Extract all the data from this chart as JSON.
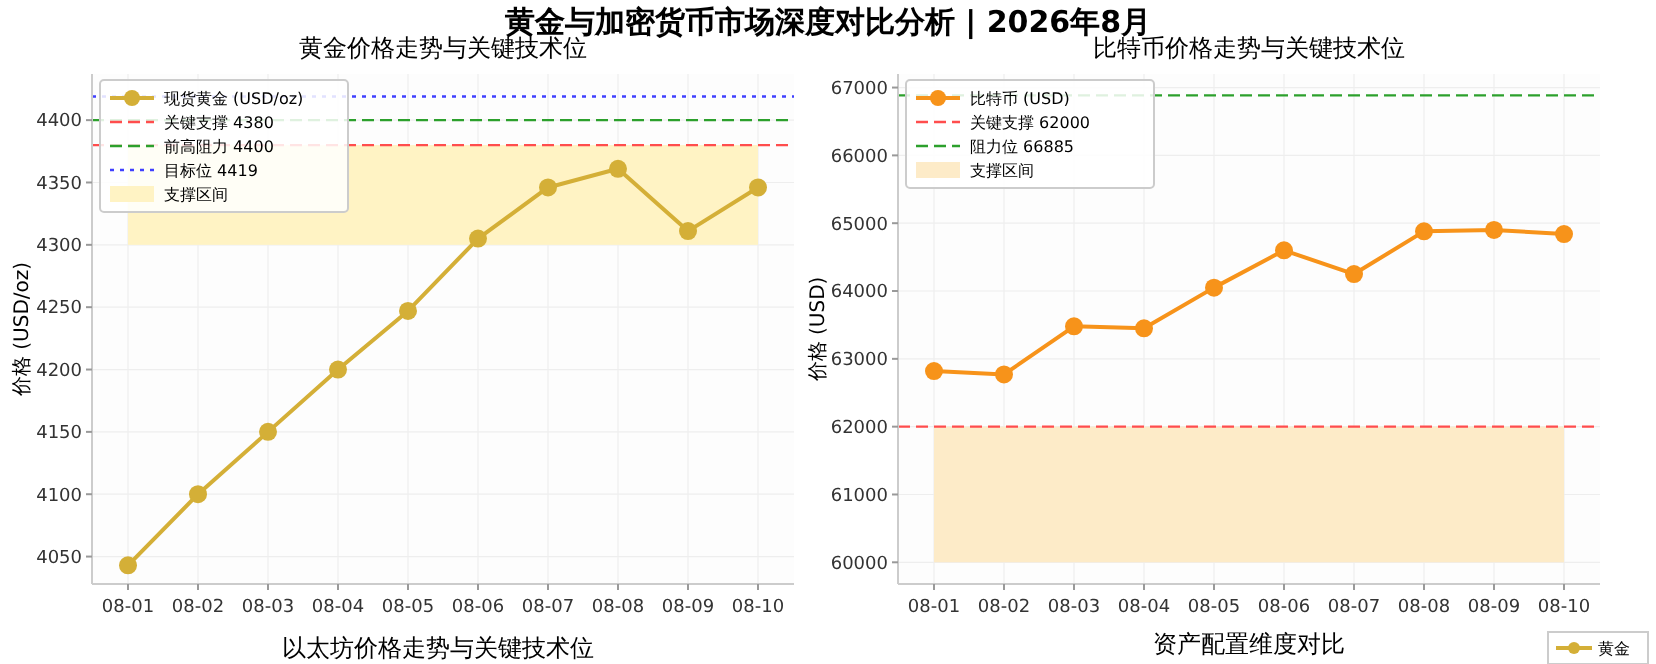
{
  "chart_data": [
    {
      "type": "line",
      "title": "黄金价格走势与关键技术位",
      "ylabel": "价格 (USD/oz)",
      "annotations": [
        "黄金与加密货币市场深度对比分析 | 2026年8月",
        "以太坊价格走势与关键技术位"
      ],
      "categories": [
        "08-01",
        "08-02",
        "08-03",
        "08-04",
        "08-05",
        "08-06",
        "08-07",
        "08-08",
        "08-09",
        "08-10"
      ],
      "series": [
        {
          "name": "现货黄金 (USD/oz)",
          "color": "#d4af37",
          "values": [
            4043,
            4100,
            4150,
            4200,
            4247,
            4305,
            4346,
            4361,
            4311,
            4346
          ]
        }
      ],
      "ref_lines": [
        {
          "axis": "y",
          "value": 4380,
          "label": "关键支撑 4380",
          "color": "#ff4d4d",
          "line_style": "dashed"
        },
        {
          "axis": "y",
          "value": 4400,
          "label": "前高阻力 4400",
          "color": "#2ca02c",
          "line_style": "dashed"
        },
        {
          "axis": "y",
          "value": 4419,
          "label": "目标位 4419",
          "color": "#4040ff",
          "line_style": "dotted"
        }
      ],
      "bands": [
        {
          "axis": "y",
          "from": 4300,
          "to": 4380,
          "label": "支撑区间",
          "color": "#fff3c4"
        }
      ],
      "ylim": [
        4028,
        4437
      ],
      "yticks": [
        4050,
        4100,
        4150,
        4200,
        4250,
        4300,
        4350,
        4400
      ],
      "grid": true,
      "legend": "top left",
      "marker": "circle",
      "line_style": "solid"
    },
    {
      "type": "line",
      "title": "比特币价格走势与关键技术位",
      "ylabel": "价格 (USD)",
      "xlabel": "资产配置维度对比",
      "annotations": [
        "黄金"
      ],
      "categories": [
        "08-01",
        "08-02",
        "08-03",
        "08-04",
        "08-05",
        "08-06",
        "08-07",
        "08-08",
        "08-09",
        "08-10"
      ],
      "series": [
        {
          "name": "比特币 (USD)",
          "color": "#f7931a",
          "values": [
            62820,
            62770,
            63480,
            63450,
            64050,
            64600,
            64250,
            64880,
            64900,
            64840
          ]
        }
      ],
      "ref_lines": [
        {
          "axis": "y",
          "value": 62000,
          "label": "关键支撑 62000",
          "color": "#ff4d4d",
          "line_style": "dashed"
        },
        {
          "axis": "y",
          "value": 66885,
          "label": "阻力位 66885",
          "color": "#2ca02c",
          "line_style": "dashed"
        }
      ],
      "bands": [
        {
          "axis": "y",
          "from": 60000,
          "to": 62000,
          "label": "支撑区间",
          "color": "#fdebc8"
        }
      ],
      "ylim": [
        59680,
        67200
      ],
      "yticks": [
        60000,
        61000,
        62000,
        63000,
        64000,
        65000,
        66000,
        67000
      ],
      "grid": true,
      "legend": "top left",
      "marker": "circle",
      "line_style": "solid"
    }
  ]
}
